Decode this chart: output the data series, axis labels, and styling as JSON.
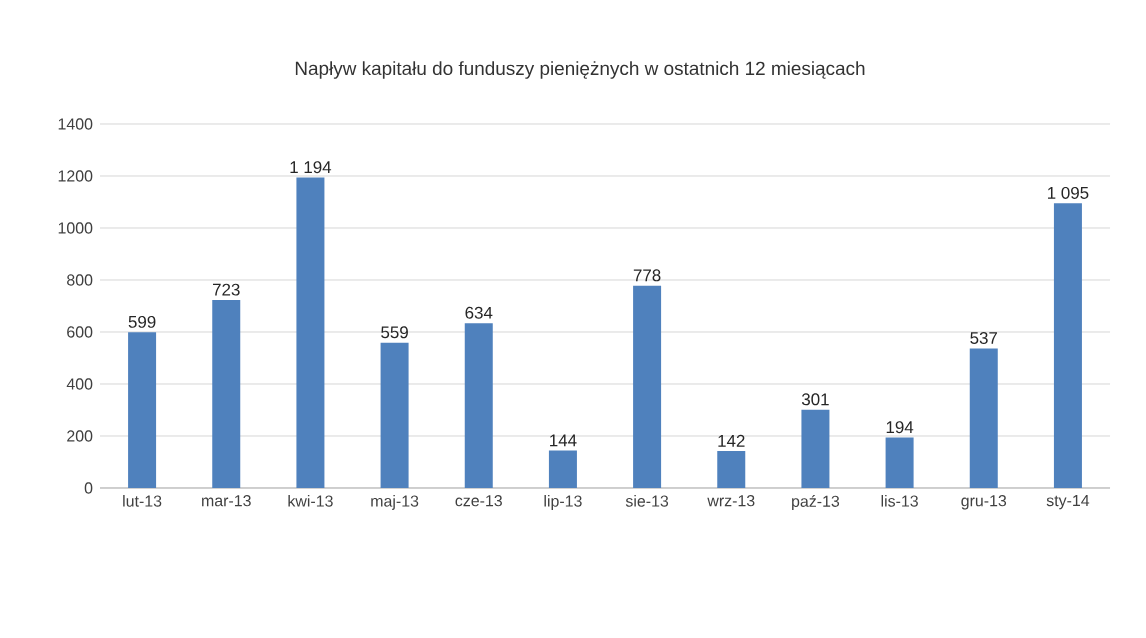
{
  "chart_data": {
    "type": "bar",
    "title": "Napływ kapitału do funduszy pieniężnych w ostatnich 12 miesiącach",
    "categories": [
      "lut-13",
      "mar-13",
      "kwi-13",
      "maj-13",
      "cze-13",
      "lip-13",
      "sie-13",
      "wrz-13",
      "paź-13",
      "lis-13",
      "gru-13",
      "sty-14"
    ],
    "values": [
      599,
      723,
      1194,
      559,
      634,
      144,
      778,
      142,
      301,
      194,
      537,
      1095
    ],
    "value_labels": [
      "599",
      "723",
      "1 194",
      "559",
      "634",
      "144",
      "778",
      "142",
      "301",
      "194",
      "537",
      "1 095"
    ],
    "color": "#4f81bd",
    "ylim": [
      0,
      1400
    ],
    "yticks": [
      0,
      200,
      400,
      600,
      800,
      1000,
      1200,
      1400
    ],
    "grid": "y"
  }
}
